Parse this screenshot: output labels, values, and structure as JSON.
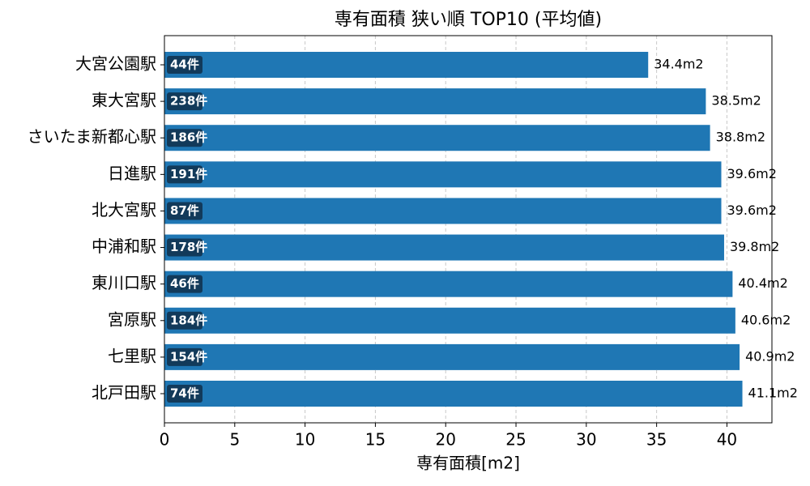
{
  "chart_data": {
    "type": "barh",
    "title": "専有面積 狭い順 TOP10 (平均値)",
    "xlabel": "専有面積[m2]",
    "categories": [
      "大宮公園駅",
      "東大宮駅",
      "さいたま新都心駅",
      "日進駅",
      "北大宮駅",
      "中浦和駅",
      "東川口駅",
      "宮原駅",
      "七里駅",
      "北戸田駅"
    ],
    "values": [
      34.4,
      38.5,
      38.8,
      39.6,
      39.6,
      39.8,
      40.4,
      40.6,
      40.9,
      41.1
    ],
    "value_labels": [
      "34.4m2",
      "38.5m2",
      "38.8m2",
      "39.6m2",
      "39.6m2",
      "39.8m2",
      "40.4m2",
      "40.6m2",
      "40.9m2",
      "41.1m2"
    ],
    "count_labels": [
      "44件",
      "238件",
      "186件",
      "191件",
      "87件",
      "178件",
      "46件",
      "184件",
      "154件",
      "74件"
    ],
    "color": "#1f77b4",
    "xlim": [
      0,
      43.2
    ],
    "xticks": [
      0,
      5,
      10,
      15,
      20,
      25,
      30,
      35,
      40
    ],
    "grid": true
  }
}
